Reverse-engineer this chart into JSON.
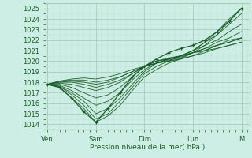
{
  "bg_color": "#cceee4",
  "grid_color_major": "#aaccbb",
  "grid_color_minor": "#bdddd3",
  "line_color": "#1a5c28",
  "ylim": [
    1013.5,
    1025.5
  ],
  "yticks": [
    1014,
    1015,
    1016,
    1017,
    1018,
    1019,
    1020,
    1021,
    1022,
    1023,
    1024,
    1025
  ],
  "xlabel": "Pression niveau de la mer( hPa )",
  "xtick_labels": [
    "Ven",
    "Sam",
    "Dim",
    "Lun",
    "M"
  ],
  "xtick_positions": [
    0,
    24,
    48,
    72,
    96
  ],
  "xlim": [
    -1,
    100
  ],
  "lines": [
    {
      "x": [
        0,
        6,
        12,
        18,
        24,
        30,
        36,
        42,
        48,
        54,
        60,
        66,
        72,
        78,
        84,
        90,
        96
      ],
      "y": [
        1017.8,
        1017.5,
        1016.5,
        1015.5,
        1014.2,
        1014.8,
        1015.8,
        1017.2,
        1018.5,
        1019.2,
        1019.8,
        1020.2,
        1020.8,
        1021.5,
        1022.5,
        1023.8,
        1025.0
      ]
    },
    {
      "x": [
        0,
        6,
        12,
        18,
        24,
        30,
        36,
        42,
        48,
        54,
        60,
        66,
        72,
        78,
        84,
        90,
        96
      ],
      "y": [
        1017.8,
        1017.6,
        1016.8,
        1015.8,
        1014.5,
        1015.0,
        1016.2,
        1017.5,
        1018.8,
        1019.5,
        1020.0,
        1020.5,
        1021.0,
        1021.8,
        1022.8,
        1024.0,
        1025.0
      ]
    },
    {
      "x": [
        0,
        6,
        12,
        18,
        24,
        30,
        36,
        42,
        48,
        54,
        60,
        66,
        72,
        78,
        84,
        90,
        96
      ],
      "y": [
        1017.8,
        1017.6,
        1017.0,
        1016.2,
        1015.0,
        1015.5,
        1016.5,
        1017.8,
        1019.0,
        1019.8,
        1020.2,
        1020.5,
        1021.0,
        1021.8,
        1022.5,
        1023.5,
        1024.5
      ]
    },
    {
      "x": [
        0,
        6,
        12,
        18,
        24,
        30,
        36,
        42,
        48,
        54,
        60,
        66,
        72,
        78,
        84,
        90,
        96
      ],
      "y": [
        1017.8,
        1017.7,
        1017.2,
        1016.5,
        1015.8,
        1016.2,
        1017.0,
        1018.2,
        1019.2,
        1019.8,
        1020.2,
        1020.5,
        1021.0,
        1021.5,
        1022.0,
        1022.8,
        1023.5
      ]
    },
    {
      "x": [
        0,
        6,
        12,
        18,
        24,
        30,
        36,
        42,
        48,
        54,
        60,
        66,
        72,
        78,
        84,
        90,
        96
      ],
      "y": [
        1017.8,
        1017.8,
        1017.5,
        1017.0,
        1016.5,
        1016.8,
        1017.5,
        1018.5,
        1019.5,
        1020.0,
        1020.3,
        1020.5,
        1020.8,
        1021.2,
        1021.8,
        1022.2,
        1022.8
      ]
    },
    {
      "x": [
        0,
        6,
        12,
        18,
        24,
        30,
        36,
        42,
        48,
        54,
        60,
        66,
        72,
        78,
        84,
        90,
        96
      ],
      "y": [
        1017.8,
        1017.9,
        1017.8,
        1017.5,
        1017.2,
        1017.5,
        1018.0,
        1018.8,
        1019.5,
        1019.8,
        1020.0,
        1020.2,
        1020.5,
        1021.0,
        1021.5,
        1022.0,
        1022.2
      ]
    },
    {
      "x": [
        0,
        6,
        12,
        18,
        24,
        30,
        36,
        42,
        48,
        54,
        60,
        66,
        72,
        78,
        84,
        90,
        96
      ],
      "y": [
        1017.8,
        1018.0,
        1018.0,
        1017.8,
        1017.5,
        1017.8,
        1018.2,
        1018.8,
        1019.5,
        1020.0,
        1020.2,
        1020.5,
        1020.8,
        1021.0,
        1021.5,
        1021.8,
        1022.2
      ]
    },
    {
      "x": [
        0,
        6,
        12,
        18,
        24,
        30,
        36,
        42,
        48,
        54,
        60,
        66,
        72,
        78,
        84,
        90,
        96
      ],
      "y": [
        1017.8,
        1018.1,
        1018.2,
        1018.2,
        1018.0,
        1018.2,
        1018.5,
        1019.0,
        1019.5,
        1020.0,
        1020.2,
        1020.4,
        1020.8,
        1021.0,
        1021.2,
        1021.5,
        1021.8
      ]
    },
    {
      "x": [
        0,
        6,
        12,
        18,
        24,
        30,
        36,
        42,
        48,
        54,
        60,
        66,
        72,
        78,
        84,
        90,
        96
      ],
      "y": [
        1017.8,
        1018.1,
        1018.3,
        1018.4,
        1018.3,
        1018.5,
        1018.8,
        1019.2,
        1019.5,
        1019.8,
        1020.0,
        1020.2,
        1020.5,
        1020.8,
        1021.2,
        1021.5,
        1021.8
      ]
    },
    {
      "x": [
        0,
        6,
        12,
        18,
        24,
        30,
        36,
        42,
        48,
        54,
        60,
        66,
        72,
        78,
        84,
        90,
        96
      ],
      "y": [
        1017.8,
        1018.0,
        1018.1,
        1018.0,
        1017.8,
        1018.0,
        1018.5,
        1019.0,
        1019.5,
        1019.8,
        1020.1,
        1020.3,
        1020.8,
        1021.2,
        1021.5,
        1021.8,
        1022.2
      ]
    }
  ],
  "marker_line": {
    "x": [
      0,
      6,
      12,
      18,
      24,
      30,
      36,
      42,
      48,
      54,
      60,
      66,
      72,
      78,
      84,
      90,
      96
    ],
    "y": [
      1017.8,
      1017.5,
      1016.5,
      1015.2,
      1014.2,
      1015.5,
      1017.0,
      1018.5,
      1019.5,
      1020.2,
      1020.8,
      1021.2,
      1021.5,
      1022.0,
      1022.8,
      1023.8,
      1025.0
    ]
  }
}
